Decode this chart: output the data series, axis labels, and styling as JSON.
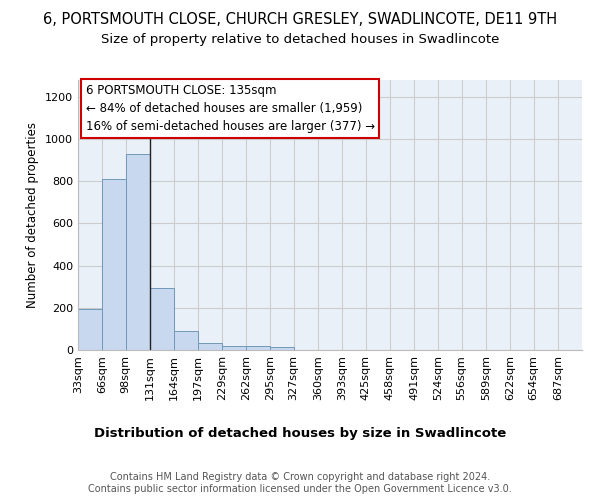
{
  "title1": "6, PORTSMOUTH CLOSE, CHURCH GRESLEY, SWADLINCOTE, DE11 9TH",
  "title2": "Size of property relative to detached houses in Swadlincote",
  "xlabel": "Distribution of detached houses by size in Swadlincote",
  "ylabel": "Number of detached properties",
  "bins": [
    33,
    66,
    98,
    131,
    164,
    197,
    229,
    262,
    295,
    327,
    360,
    393,
    425,
    458,
    491,
    524,
    556,
    589,
    622,
    654,
    687,
    720
  ],
  "bin_labels": [
    "33sqm",
    "66sqm",
    "98sqm",
    "131sqm",
    "164sqm",
    "197sqm",
    "229sqm",
    "262sqm",
    "295sqm",
    "327sqm",
    "360sqm",
    "393sqm",
    "425sqm",
    "458sqm",
    "491sqm",
    "524sqm",
    "556sqm",
    "589sqm",
    "622sqm",
    "654sqm",
    "687sqm"
  ],
  "heights": [
    193,
    810,
    930,
    295,
    88,
    35,
    20,
    18,
    12,
    0,
    0,
    0,
    0,
    0,
    0,
    0,
    0,
    0,
    0,
    0,
    0
  ],
  "bar_color": "#c8d8ee",
  "bar_edge_color": "#7098b8",
  "property_line_x": 131,
  "property_line_color": "#222222",
  "annotation_text": "6 PORTSMOUTH CLOSE: 135sqm\n← 84% of detached houses are smaller (1,959)\n16% of semi-detached houses are larger (377) →",
  "annotation_box_color": "#ffffff",
  "annotation_border_color": "#cc0000",
  "ylim": [
    0,
    1280
  ],
  "yticks": [
    0,
    200,
    400,
    600,
    800,
    1000,
    1200
  ],
  "grid_color": "#cccccc",
  "bg_color": "#eaf0f8",
  "footer_text": "Contains HM Land Registry data © Crown copyright and database right 2024.\nContains public sector information licensed under the Open Government Licence v3.0.",
  "title1_fontsize": 10.5,
  "title2_fontsize": 9.5,
  "xlabel_fontsize": 9.5,
  "ylabel_fontsize": 8.5,
  "tick_fontsize": 8,
  "annotation_fontsize": 8.5,
  "footer_fontsize": 7
}
